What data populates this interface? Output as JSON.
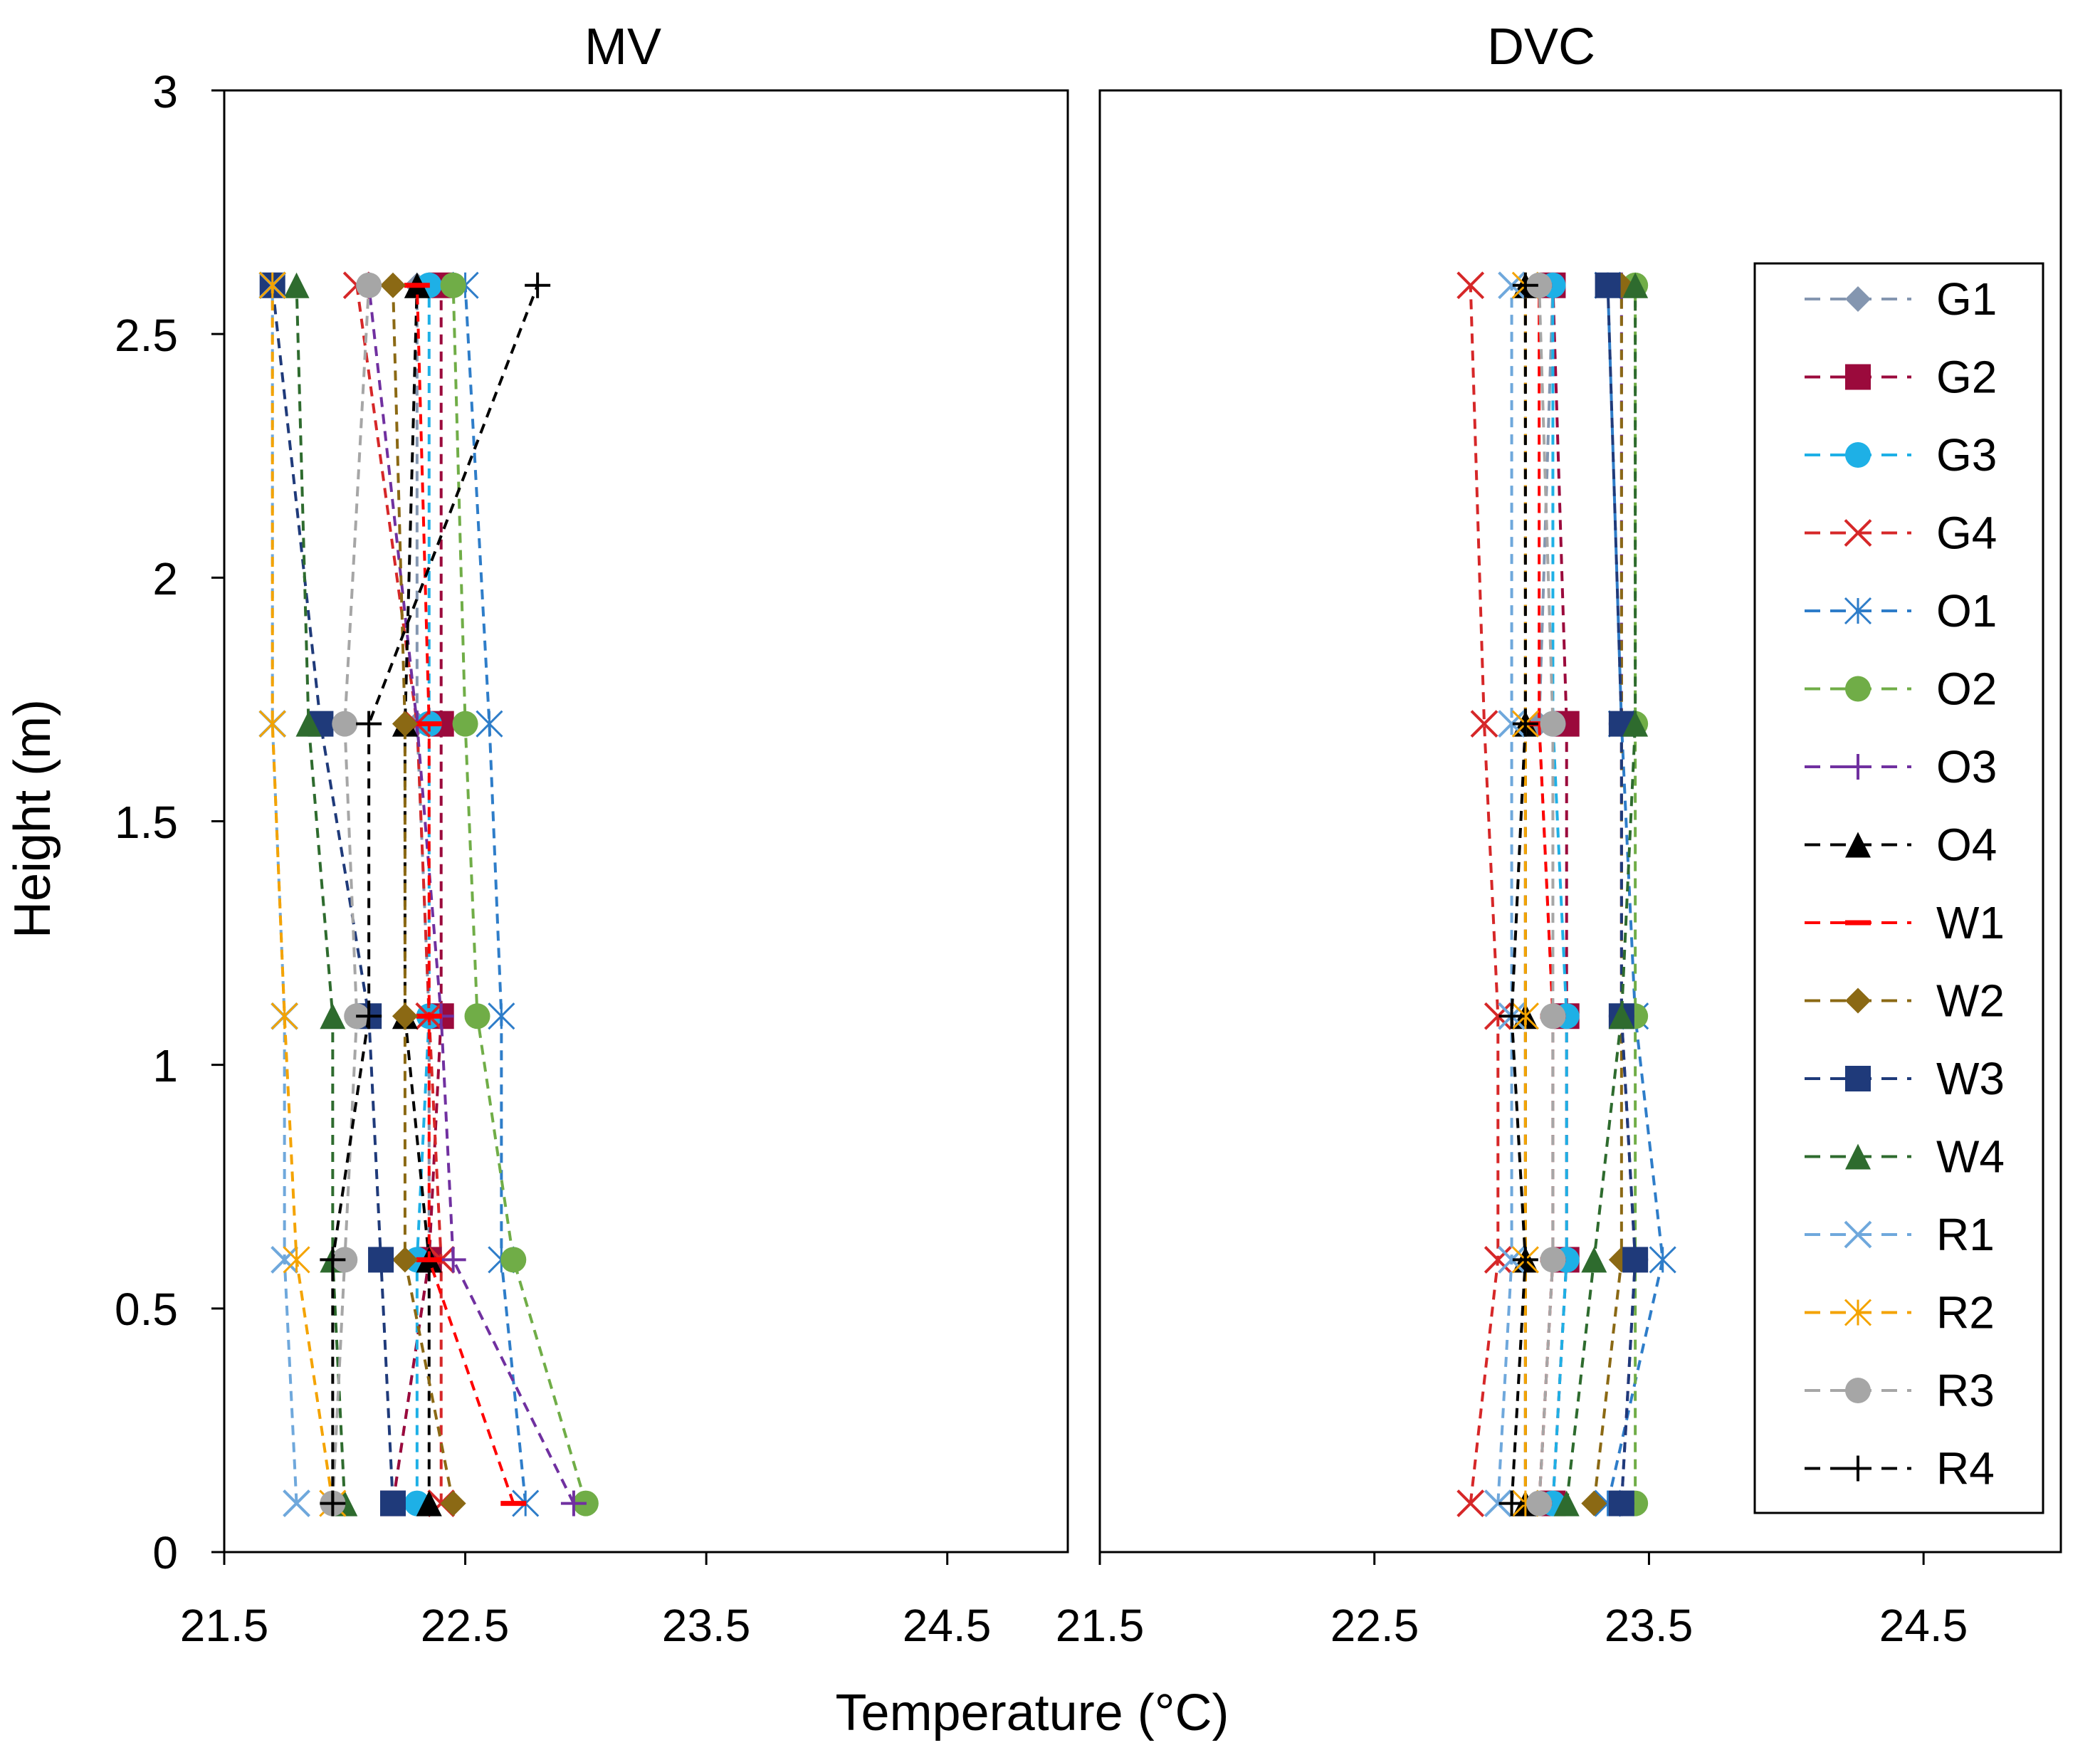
{
  "chart_data": {
    "type": "line",
    "xlabel": "Temperature (°C)",
    "ylabel": "Height (m)",
    "ylim": [
      0,
      3
    ],
    "yticks": [
      "0",
      "0.5",
      "1",
      "1.5",
      "2",
      "2.5",
      "3"
    ],
    "heights": [
      0.1,
      0.6,
      1.1,
      1.7,
      2.6
    ],
    "legend_position": "right, inside DVC panel",
    "series_style": [
      {
        "name": "G1",
        "color": "#8496B0",
        "marker": "diamond"
      },
      {
        "name": "G2",
        "color": "#9B0A3C",
        "marker": "square"
      },
      {
        "name": "G3",
        "color": "#1EB0E6",
        "marker": "circle"
      },
      {
        "name": "G4",
        "color": "#D62728",
        "marker": "x"
      },
      {
        "name": "O1",
        "color": "#2E7DC9",
        "marker": "asterisk"
      },
      {
        "name": "O2",
        "color": "#70AD47",
        "marker": "circle"
      },
      {
        "name": "O3",
        "color": "#7030A0",
        "marker": "plus"
      },
      {
        "name": "O4",
        "color": "#000000",
        "marker": "triangle"
      },
      {
        "name": "W1",
        "color": "#FF0000",
        "marker": "dash"
      },
      {
        "name": "W2",
        "color": "#8B6914",
        "marker": "diamond"
      },
      {
        "name": "W3",
        "color": "#1F3A7A",
        "marker": "square"
      },
      {
        "name": "W4",
        "color": "#2E6B2E",
        "marker": "triangle"
      },
      {
        "name": "R1",
        "color": "#6FA8DC",
        "marker": "x"
      },
      {
        "name": "R2",
        "color": "#F4A300",
        "marker": "asterisk"
      },
      {
        "name": "R3",
        "color": "#A6A6A6",
        "marker": "circle"
      },
      {
        "name": "R4",
        "color": "#000000",
        "marker": "plus"
      }
    ],
    "panels": [
      {
        "title": "MV",
        "xlim": [
          21.5,
          25.0
        ],
        "xticks": [
          "21.5",
          "22.5",
          "23.5",
          "24.5"
        ],
        "xtick_values": [
          21.5,
          22.5,
          23.5,
          24.5
        ],
        "series": [
          {
            "name": "G1",
            "values": [
              22.2,
              22.35,
              22.35,
              22.3,
              22.3
            ]
          },
          {
            "name": "G2",
            "values": [
              22.2,
              22.35,
              22.4,
              22.4,
              22.4
            ]
          },
          {
            "name": "G3",
            "values": [
              22.3,
              22.3,
              22.35,
              22.35,
              22.35
            ]
          },
          {
            "name": "G4",
            "values": [
              22.4,
              22.4,
              22.35,
              22.3,
              22.05
            ]
          },
          {
            "name": "O1",
            "values": [
              22.75,
              22.65,
              22.65,
              22.6,
              22.5
            ]
          },
          {
            "name": "O2",
            "values": [
              23.0,
              22.7,
              22.55,
              22.5,
              22.45
            ]
          },
          {
            "name": "O3",
            "values": [
              22.95,
              22.45,
              22.4,
              22.3,
              22.1
            ]
          },
          {
            "name": "O4",
            "values": [
              22.35,
              22.35,
              22.25,
              22.25,
              22.3
            ]
          },
          {
            "name": "W1",
            "values": [
              22.7,
              22.35,
              22.35,
              22.35,
              22.3
            ]
          },
          {
            "name": "W2",
            "values": [
              22.45,
              22.25,
              22.25,
              22.25,
              22.2
            ]
          },
          {
            "name": "W3",
            "values": [
              22.2,
              22.15,
              22.1,
              21.9,
              21.7
            ]
          },
          {
            "name": "W4",
            "values": [
              22.0,
              21.95,
              21.95,
              21.85,
              21.8
            ]
          },
          {
            "name": "R1",
            "values": [
              21.8,
              21.75,
              21.75,
              21.7,
              21.7
            ]
          },
          {
            "name": "R2",
            "values": [
              21.95,
              21.8,
              21.75,
              21.7,
              21.7
            ]
          },
          {
            "name": "R3",
            "values": [
              21.95,
              22.0,
              22.05,
              22.0,
              22.1
            ]
          },
          {
            "name": "R4",
            "values": [
              21.95,
              21.95,
              22.1,
              22.1,
              22.8
            ]
          }
        ]
      },
      {
        "title": "DVC",
        "xlim": [
          21.5,
          25.0
        ],
        "xticks": [
          "21.5",
          "22.5",
          "23.5",
          "24.5"
        ],
        "xtick_values": [
          21.5,
          22.5,
          23.5,
          24.5
        ],
        "series": [
          {
            "name": "G1",
            "values": [
              23.1,
              23.15,
              23.15,
              23.1,
              23.15
            ]
          },
          {
            "name": "G2",
            "values": [
              23.15,
              23.2,
              23.2,
              23.2,
              23.15
            ]
          },
          {
            "name": "G3",
            "values": [
              23.15,
              23.2,
              23.2,
              23.15,
              23.15
            ]
          },
          {
            "name": "G4",
            "values": [
              22.85,
              22.95,
              22.95,
              22.9,
              22.85
            ]
          },
          {
            "name": "O1",
            "values": [
              23.35,
              23.55,
              23.45,
              23.4,
              23.35
            ]
          },
          {
            "name": "O2",
            "values": [
              23.45,
              23.45,
              23.45,
              23.45,
              23.45
            ]
          },
          {
            "name": "O3",
            "values": [
              23.4,
              23.45,
              23.4,
              23.4,
              23.4
            ]
          },
          {
            "name": "O4",
            "values": [
              23.05,
              23.05,
              23.05,
              23.05,
              23.05
            ]
          },
          {
            "name": "W1",
            "values": [
              23.1,
              23.15,
              23.15,
              23.1,
              23.1
            ]
          },
          {
            "name": "W2",
            "values": [
              23.3,
              23.4,
              23.4,
              23.4,
              23.4
            ]
          },
          {
            "name": "W3",
            "values": [
              23.4,
              23.45,
              23.4,
              23.4,
              23.35
            ]
          },
          {
            "name": "W4",
            "values": [
              23.2,
              23.3,
              23.4,
              23.45,
              23.45
            ]
          },
          {
            "name": "R1",
            "values": [
              22.95,
              23.0,
              23.0,
              23.0,
              23.0
            ]
          },
          {
            "name": "R2",
            "values": [
              23.05,
              23.05,
              23.05,
              23.05,
              23.05
            ]
          },
          {
            "name": "R3",
            "values": [
              23.1,
              23.15,
              23.15,
              23.15,
              23.1
            ]
          },
          {
            "name": "R4",
            "values": [
              23.0,
              23.05,
              23.0,
              23.05,
              23.05
            ]
          }
        ]
      }
    ]
  }
}
